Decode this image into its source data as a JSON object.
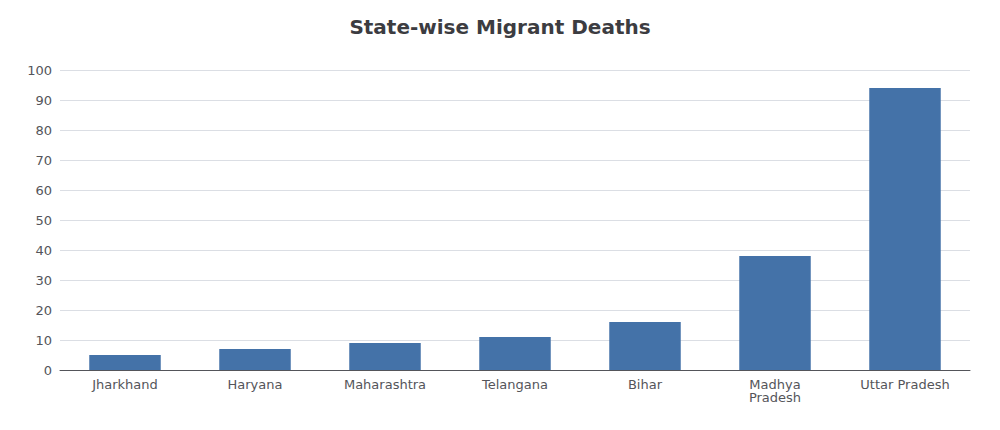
{
  "chart_data": {
    "type": "bar",
    "title": "State-wise Migrant Deaths",
    "categories": [
      "Jharkhand",
      "Haryana",
      "Maharashtra",
      "Telangana",
      "Bihar",
      "Madhya\nPradesh",
      "Uttar Pradesh"
    ],
    "values": [
      5,
      7,
      9,
      11,
      16,
      38,
      94
    ],
    "color": "#4472a8",
    "ylim": [
      0,
      100
    ],
    "yticks": [
      0,
      10,
      20,
      30,
      40,
      50,
      60,
      70,
      80,
      90,
      100
    ],
    "grid": true
  }
}
